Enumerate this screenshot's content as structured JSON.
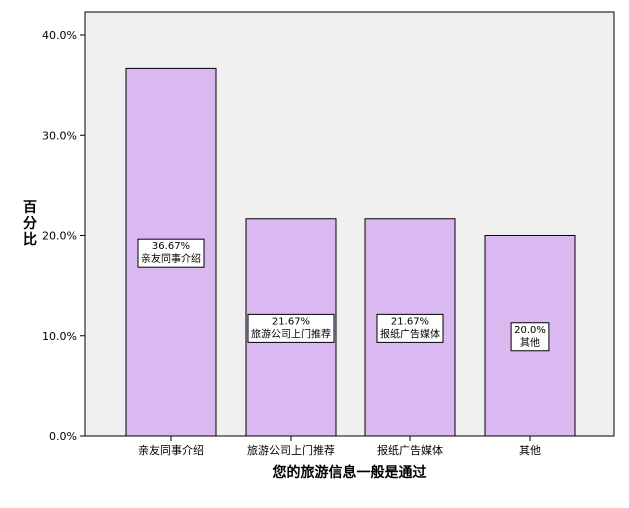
{
  "chart_data": {
    "type": "bar",
    "categories": [
      "亲友同事介绍",
      "旅游公司上门推荐",
      "报纸广告媒体",
      "其他"
    ],
    "values": [
      36.67,
      21.67,
      21.67,
      20.0
    ],
    "data_labels": [
      {
        "value_text": "36.67%",
        "category_text": "亲友同事介绍"
      },
      {
        "value_text": "21.67%",
        "category_text": "旅游公司上门推荐"
      },
      {
        "value_text": "21.67%",
        "category_text": "报纸广告媒体"
      },
      {
        "value_text": "20.0%",
        "category_text": "其他"
      }
    ],
    "title": "",
    "xlabel": "您的旅游信息一般是通过",
    "ylabel": "百分比",
    "ylim": [
      0,
      40
    ],
    "yticks": [
      0,
      10,
      20,
      30,
      40
    ],
    "ytick_labels": [
      "0.0%",
      "10.0%",
      "20.0%",
      "30.0%",
      "40.0%"
    ],
    "grid": false,
    "legend": "none",
    "colors": {
      "bar_fill": "#dab8f0",
      "bar_stroke": "#000000",
      "plot_background": "#f0f0f0",
      "page_background": "#ffffff",
      "axis": "#000000",
      "label_box_fill": "#ffffff"
    }
  }
}
